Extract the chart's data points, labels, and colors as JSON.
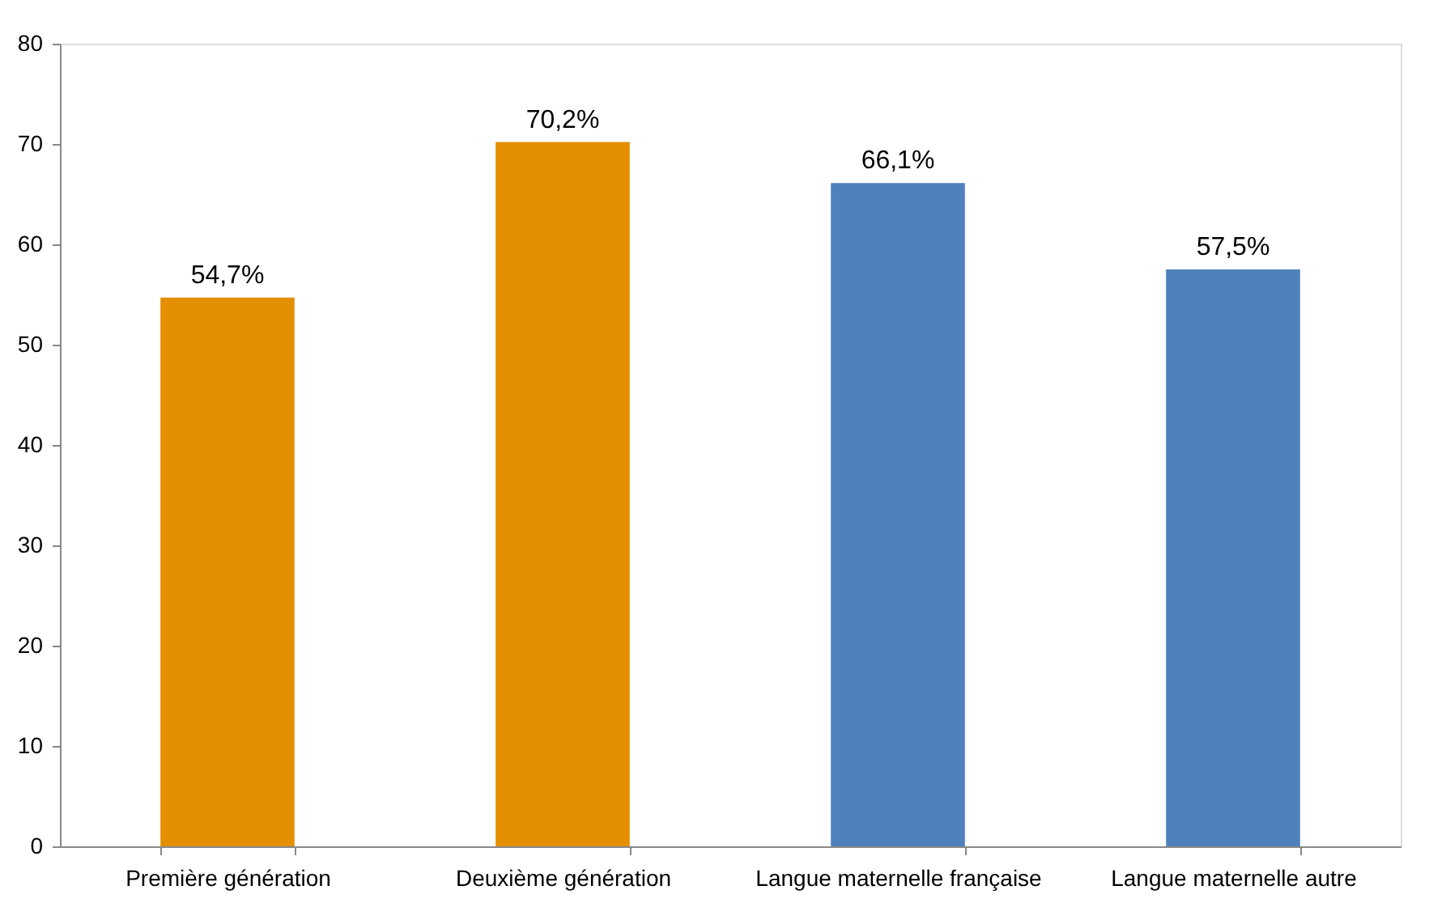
{
  "chart_data": {
    "type": "bar",
    "categories": [
      "Première génération",
      "Deuxième génération",
      "Langue maternelle française",
      "Langue maternelle autre"
    ],
    "values": [
      54.7,
      70.2,
      66.1,
      57.5
    ],
    "colors": [
      "#e38f00",
      "#e38f00",
      "#4f81bd",
      "#4f81bd"
    ],
    "value_labels": [
      "54,7%",
      "70,2%",
      "66,1%",
      "57,5%"
    ],
    "ylim": [
      0,
      80
    ],
    "yticks": [
      0,
      10,
      20,
      30,
      40,
      50,
      60,
      70,
      80
    ],
    "grid": false
  }
}
